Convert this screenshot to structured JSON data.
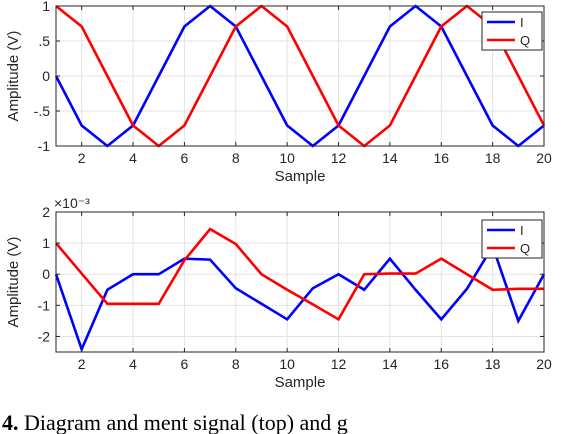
{
  "chart_data": [
    {
      "type": "line",
      "xlabel": "Sample",
      "ylabel": "Amplitude (V)",
      "xlim": [
        1,
        20
      ],
      "ylim": [
        -1,
        1
      ],
      "xticks": [
        2,
        4,
        6,
        8,
        10,
        12,
        14,
        16,
        18,
        20
      ],
      "yticks": [
        -1,
        -0.5,
        0,
        0.5,
        1
      ],
      "grid": true,
      "legend": "top-right",
      "x": [
        1,
        2,
        3,
        4,
        5,
        6,
        7,
        8,
        9,
        10,
        11,
        12,
        13,
        14,
        15,
        16,
        17,
        18,
        19,
        20
      ],
      "series": [
        {
          "name": "I",
          "color": "#0000ff",
          "values": [
            0,
            -0.707,
            -1,
            -0.707,
            0,
            0.707,
            1,
            0.707,
            0,
            -0.707,
            -1,
            -0.707,
            0,
            0.707,
            1,
            0.707,
            0,
            -0.707,
            -1,
            -0.707
          ]
        },
        {
          "name": "Q",
          "color": "#ff0000",
          "values": [
            1,
            0.707,
            0,
            -0.707,
            -1,
            -0.707,
            0,
            0.707,
            1,
            0.707,
            0,
            -0.707,
            -1,
            -0.707,
            0,
            0.707,
            1,
            0.707,
            0,
            -0.707
          ]
        }
      ]
    },
    {
      "type": "line",
      "xlabel": "Sample",
      "ylabel": "Amplitude (V)",
      "xlim": [
        1,
        20
      ],
      "ylim": [
        -2.5,
        2
      ],
      "xticks": [
        2,
        4,
        6,
        8,
        10,
        12,
        14,
        16,
        18,
        20
      ],
      "yticks": [
        -2,
        -1,
        0,
        1,
        2
      ],
      "scale_factor": "×10⁻³",
      "grid": true,
      "legend": "top-right",
      "x": [
        1,
        2,
        3,
        4,
        5,
        6,
        7,
        8,
        9,
        10,
        11,
        12,
        13,
        14,
        15,
        16,
        17,
        18,
        19,
        20
      ],
      "series": [
        {
          "name": "I",
          "color": "#0000ff",
          "values": [
            0,
            -2.414,
            -0.5,
            0,
            0,
            0.5,
            0.47,
            -0.45,
            -0.95,
            -1.45,
            -0.45,
            0,
            -0.5,
            0.5,
            -0.5,
            -1.45,
            -0.47,
            0.9,
            -1.5,
            0
          ]
        },
        {
          "name": "Q",
          "color": "#ff0000",
          "values": [
            1,
            0.02,
            -0.95,
            -0.95,
            -0.95,
            0.45,
            1.45,
            0.97,
            0,
            -0.5,
            -0.97,
            -1.45,
            0,
            0.02,
            0.02,
            0.5,
            0,
            -0.5,
            -0.47,
            -0.47
          ]
        }
      ]
    }
  ],
  "caption": {
    "label": "4.",
    "text": "Diagram and     ment signal (top) and     g"
  }
}
